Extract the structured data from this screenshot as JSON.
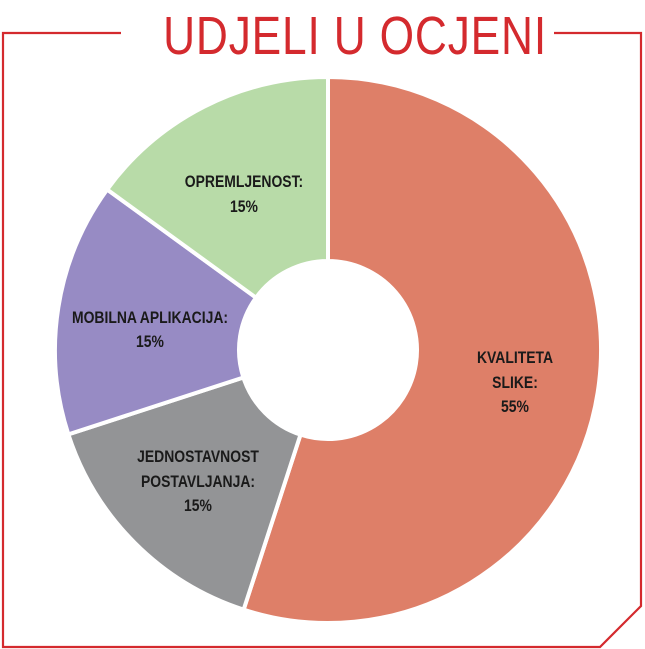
{
  "chart_data": {
    "type": "pie",
    "title": "UDJELI U OCJENI",
    "donut": true,
    "slices": [
      {
        "label": "KVALITETA SLIKE:",
        "value": 55,
        "value_label": "55%",
        "color": "#DE7F68"
      },
      {
        "label": "JEDNOSTAVNOST POSTAVLJANJA:",
        "value": 15,
        "value_label": "15%",
        "color": "#939496"
      },
      {
        "label": "MOBILNA APLIKACIJA:",
        "value": 15,
        "value_label": "15%",
        "color": "#978BC4"
      },
      {
        "label": "OPREMLJENOST:",
        "value": 15,
        "value_label": "15%",
        "color": "#B8DBA8"
      }
    ],
    "frame_color": "#D42A2E"
  }
}
